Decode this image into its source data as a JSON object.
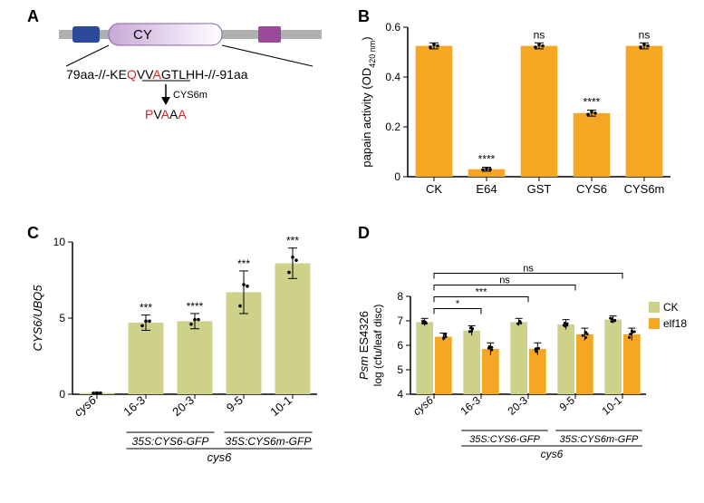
{
  "panelA": {
    "label": "A",
    "diagram": {
      "rod_color": "#b0b0b0",
      "box1_color": "#2b4a9b",
      "cy_box_gradient_start": "#c9a8d8",
      "cy_box_gradient_end": "#ffffff",
      "cy_box_border": "#8a63a8",
      "box2_color": "#9b4a9b",
      "cy_label": "CY",
      "seq_black1": "79aa-//-KE",
      "seq_red1": "Q",
      "seq_black2": "VV",
      "seq_red2": "A",
      "seq_black3": "G",
      "seq_black4": "TLHH-//-91aa",
      "arrow_label": "CYS6m",
      "mut_seq": "P",
      "mut_seq2": "V",
      "mut_seq3": "A",
      "mut_seq4": "A",
      "mut_seq5": "A",
      "mut_red_full": "PVAAA",
      "seq_red_color": "#e02020"
    }
  },
  "panelB": {
    "label": "B",
    "chart": {
      "type": "bar",
      "ylabel_line1": "papain activity (OD",
      "ylabel_sub": "420 nm",
      "ylabel_line2": ")",
      "ylim": [
        0,
        0.6
      ],
      "yticks": [
        0,
        0.2,
        0.4,
        0.6
      ],
      "categories": [
        "CK",
        "E64",
        "GST",
        "CYS6",
        "CYS6m"
      ],
      "values": [
        0.525,
        0.03,
        0.525,
        0.255,
        0.525
      ],
      "errors": [
        0.012,
        0.008,
        0.012,
        0.012,
        0.012
      ],
      "bar_color": "#f5a623",
      "sig_labels": [
        "",
        "****",
        "ns",
        "****",
        "ns"
      ],
      "points": [
        [
          0.52,
          0.53,
          0.525
        ],
        [
          0.028,
          0.032,
          0.03
        ],
        [
          0.52,
          0.53,
          0.525
        ],
        [
          0.25,
          0.26,
          0.255
        ],
        [
          0.52,
          0.53,
          0.525
        ]
      ]
    }
  },
  "panelC": {
    "label": "C",
    "chart": {
      "type": "bar",
      "ylabel": "CYS6/UBQ5",
      "ylabel_italic": true,
      "ylim": [
        0,
        10
      ],
      "yticks": [
        0,
        5,
        10
      ],
      "categories": [
        "cys6",
        "16-3",
        "20-3",
        "9-5",
        "10-1"
      ],
      "values": [
        0.08,
        4.7,
        4.8,
        6.7,
        8.6
      ],
      "errors": [
        0.05,
        0.5,
        0.5,
        1.4,
        1.0
      ],
      "bar_color": "#cdd18a",
      "sig_labels": [
        "",
        "***",
        "****",
        "***",
        "***"
      ],
      "points": [
        [
          0.07,
          0.09,
          0.08
        ],
        [
          4.5,
          4.8,
          4.8
        ],
        [
          4.6,
          4.9,
          4.9
        ],
        [
          5.8,
          7.2,
          7.1
        ],
        [
          8.0,
          9.0,
          8.8
        ]
      ],
      "group_labels": [
        "35S:CYS6-GFP",
        "35S:CYS6m-GFP"
      ],
      "group_parent": "cys6"
    }
  },
  "panelD": {
    "label": "D",
    "chart": {
      "type": "grouped-bar",
      "ylabel_line1": "Psm",
      "ylabel_line1_italic": true,
      "ylabel_line2": " ES4326",
      "ylabel_line3": "log (cfu/leaf disc)",
      "ylim": [
        4,
        8
      ],
      "yticks": [
        4,
        5,
        6,
        7,
        8
      ],
      "categories": [
        "cys6",
        "16-3",
        "20-3",
        "9-5",
        "10-1"
      ],
      "legend": [
        {
          "label": "CK",
          "color": "#cdd18a"
        },
        {
          "label": "elf18",
          "color": "#f5a623"
        }
      ],
      "values_ck": [
        6.95,
        6.6,
        6.95,
        6.85,
        7.05
      ],
      "values_elf18": [
        6.35,
        5.85,
        5.85,
        6.45,
        6.45
      ],
      "errors_ck": [
        0.15,
        0.2,
        0.15,
        0.2,
        0.15
      ],
      "errors_elf18": [
        0.15,
        0.25,
        0.25,
        0.25,
        0.25
      ],
      "sig_labels": [
        "",
        "*",
        "***",
        "ns",
        "ns"
      ],
      "group_labels": [
        "35S:CYS6-GFP",
        "35S:CYS6m-GFP"
      ],
      "group_parent": "cys6"
    }
  },
  "colors": {
    "orange": "#f5a623",
    "olive": "#cdd18a",
    "red": "#e02020",
    "black": "#000000"
  }
}
